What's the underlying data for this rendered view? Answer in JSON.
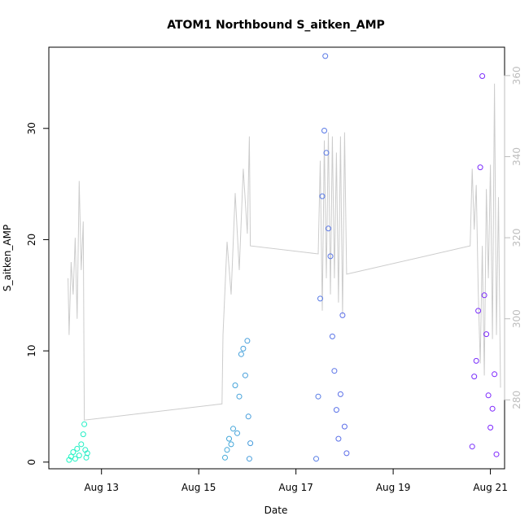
{
  "chart_data": {
    "type": "scatter",
    "title": "ATOM1 Northbound S_aitken_AMP",
    "xlabel": "Date",
    "ylabel": "S_aitken_AMP",
    "x_ticks": [
      "Aug 13",
      "Aug 15",
      "Aug 17",
      "Aug 19",
      "Aug 21"
    ],
    "xlim": [
      "2023-08-11 22:00",
      "2023-08-21 07:00"
    ],
    "ylim": [
      -0.6,
      37.3
    ],
    "y_ticks": [
      0,
      10,
      20,
      30
    ],
    "y2_ticks": [
      280,
      300,
      320,
      340,
      360
    ],
    "y2lim": [
      263,
      367
    ],
    "grid": false,
    "legend": "none",
    "series": [
      {
        "kind": "points",
        "color_start": "#1affc0",
        "color_end": "#8020ff",
        "points": [
          [
            "2023-08-12 08:00",
            0.2
          ],
          [
            "2023-08-12 09:00",
            0.5
          ],
          [
            "2023-08-12 10:00",
            0.9
          ],
          [
            "2023-08-12 11:00",
            0.3
          ],
          [
            "2023-08-12 12:00",
            1.2
          ],
          [
            "2023-08-12 13:00",
            0.6
          ],
          [
            "2023-08-12 14:00",
            1.6
          ],
          [
            "2023-08-12 15:00",
            2.5
          ],
          [
            "2023-08-12 15:30",
            3.4
          ],
          [
            "2023-08-12 16:00",
            1.1
          ],
          [
            "2023-08-12 16:30",
            0.4
          ],
          [
            "2023-08-12 17:00",
            0.8
          ],
          [
            "2023-08-15 13:00",
            0.4
          ],
          [
            "2023-08-15 14:00",
            1.1
          ],
          [
            "2023-08-15 15:00",
            2.1
          ],
          [
            "2023-08-15 16:00",
            1.6
          ],
          [
            "2023-08-15 17:00",
            3.0
          ],
          [
            "2023-08-15 18:00",
            6.9
          ],
          [
            "2023-08-15 19:00",
            2.6
          ],
          [
            "2023-08-15 20:00",
            5.9
          ],
          [
            "2023-08-15 21:00",
            9.7
          ],
          [
            "2023-08-15 22:00",
            10.2
          ],
          [
            "2023-08-15 23:00",
            7.8
          ],
          [
            "2023-08-16 00:00",
            10.9
          ],
          [
            "2023-08-16 00:30",
            4.1
          ],
          [
            "2023-08-16 01:00",
            0.3
          ],
          [
            "2023-08-16 01:30",
            1.7
          ],
          [
            "2023-08-17 10:00",
            0.3
          ],
          [
            "2023-08-17 11:00",
            5.9
          ],
          [
            "2023-08-17 12:00",
            14.7
          ],
          [
            "2023-08-17 13:00",
            23.9
          ],
          [
            "2023-08-17 14:00",
            29.8
          ],
          [
            "2023-08-17 14:30",
            36.5
          ],
          [
            "2023-08-17 15:00",
            27.8
          ],
          [
            "2023-08-17 16:00",
            21.0
          ],
          [
            "2023-08-17 17:00",
            18.5
          ],
          [
            "2023-08-17 18:00",
            11.3
          ],
          [
            "2023-08-17 19:00",
            8.2
          ],
          [
            "2023-08-17 20:00",
            4.7
          ],
          [
            "2023-08-17 21:00",
            2.1
          ],
          [
            "2023-08-17 22:00",
            6.1
          ],
          [
            "2023-08-17 23:00",
            13.2
          ],
          [
            "2023-08-18 00:00",
            3.2
          ],
          [
            "2023-08-18 01:00",
            0.8
          ],
          [
            "2023-08-20 15:00",
            1.4
          ],
          [
            "2023-08-20 16:00",
            7.7
          ],
          [
            "2023-08-20 17:00",
            9.1
          ],
          [
            "2023-08-20 18:00",
            13.6
          ],
          [
            "2023-08-20 19:00",
            26.5
          ],
          [
            "2023-08-20 20:00",
            34.7
          ],
          [
            "2023-08-20 21:00",
            15.0
          ],
          [
            "2023-08-20 22:00",
            11.5
          ],
          [
            "2023-08-20 23:00",
            6.0
          ],
          [
            "2023-08-21 00:00",
            3.1
          ],
          [
            "2023-08-21 01:00",
            4.8
          ],
          [
            "2023-08-21 02:00",
            7.9
          ],
          [
            "2023-08-21 03:00",
            0.7
          ]
        ]
      },
      {
        "kind": "line",
        "axis": "right",
        "color": "#cccccc",
        "points": [
          [
            "2023-08-12 07:30",
            310
          ],
          [
            "2023-08-12 08:00",
            296
          ],
          [
            "2023-08-12 09:00",
            314
          ],
          [
            "2023-08-12 10:00",
            306
          ],
          [
            "2023-08-12 11:00",
            320
          ],
          [
            "2023-08-12 12:00",
            300
          ],
          [
            "2023-08-12 13:00",
            334
          ],
          [
            "2023-08-12 14:00",
            312
          ],
          [
            "2023-08-12 15:00",
            324
          ],
          [
            "2023-08-12 15:30",
            275
          ],
          [
            "2023-08-15 11:30",
            279
          ],
          [
            "2023-08-15 12:00",
            296
          ],
          [
            "2023-08-15 14:00",
            319
          ],
          [
            "2023-08-15 16:00",
            306
          ],
          [
            "2023-08-15 18:00",
            331
          ],
          [
            "2023-08-15 20:00",
            312
          ],
          [
            "2023-08-15 22:00",
            337
          ],
          [
            "2023-08-16 00:00",
            321
          ],
          [
            "2023-08-16 01:00",
            345
          ],
          [
            "2023-08-16 01:30",
            318
          ],
          [
            "2023-08-17 11:00",
            316
          ],
          [
            "2023-08-17 12:00",
            339
          ],
          [
            "2023-08-17 13:00",
            302
          ],
          [
            "2023-08-17 14:00",
            344
          ],
          [
            "2023-08-17 15:00",
            310
          ],
          [
            "2023-08-17 16:00",
            346
          ],
          [
            "2023-08-17 17:00",
            306
          ],
          [
            "2023-08-17 18:00",
            345
          ],
          [
            "2023-08-17 19:00",
            310
          ],
          [
            "2023-08-17 20:00",
            341
          ],
          [
            "2023-08-17 21:00",
            304
          ],
          [
            "2023-08-17 22:00",
            345
          ],
          [
            "2023-08-17 23:00",
            301
          ],
          [
            "2023-08-18 00:00",
            346
          ],
          [
            "2023-08-18 01:00",
            311
          ],
          [
            "2023-08-20 14:00",
            318
          ],
          [
            "2023-08-20 15:00",
            337
          ],
          [
            "2023-08-20 16:00",
            322
          ],
          [
            "2023-08-20 17:00",
            333
          ],
          [
            "2023-08-20 18:00",
            307
          ],
          [
            "2023-08-20 19:00",
            289
          ],
          [
            "2023-08-20 20:00",
            318
          ],
          [
            "2023-08-20 21:00",
            286
          ],
          [
            "2023-08-20 22:00",
            332
          ],
          [
            "2023-08-20 23:00",
            310
          ],
          [
            "2023-08-21 00:00",
            338
          ],
          [
            "2023-08-21 01:00",
            295
          ],
          [
            "2023-08-21 02:00",
            358
          ],
          [
            "2023-08-21 03:00",
            296
          ],
          [
            "2023-08-21 04:00",
            330
          ],
          [
            "2023-08-21 05:00",
            283
          ]
        ]
      }
    ]
  }
}
